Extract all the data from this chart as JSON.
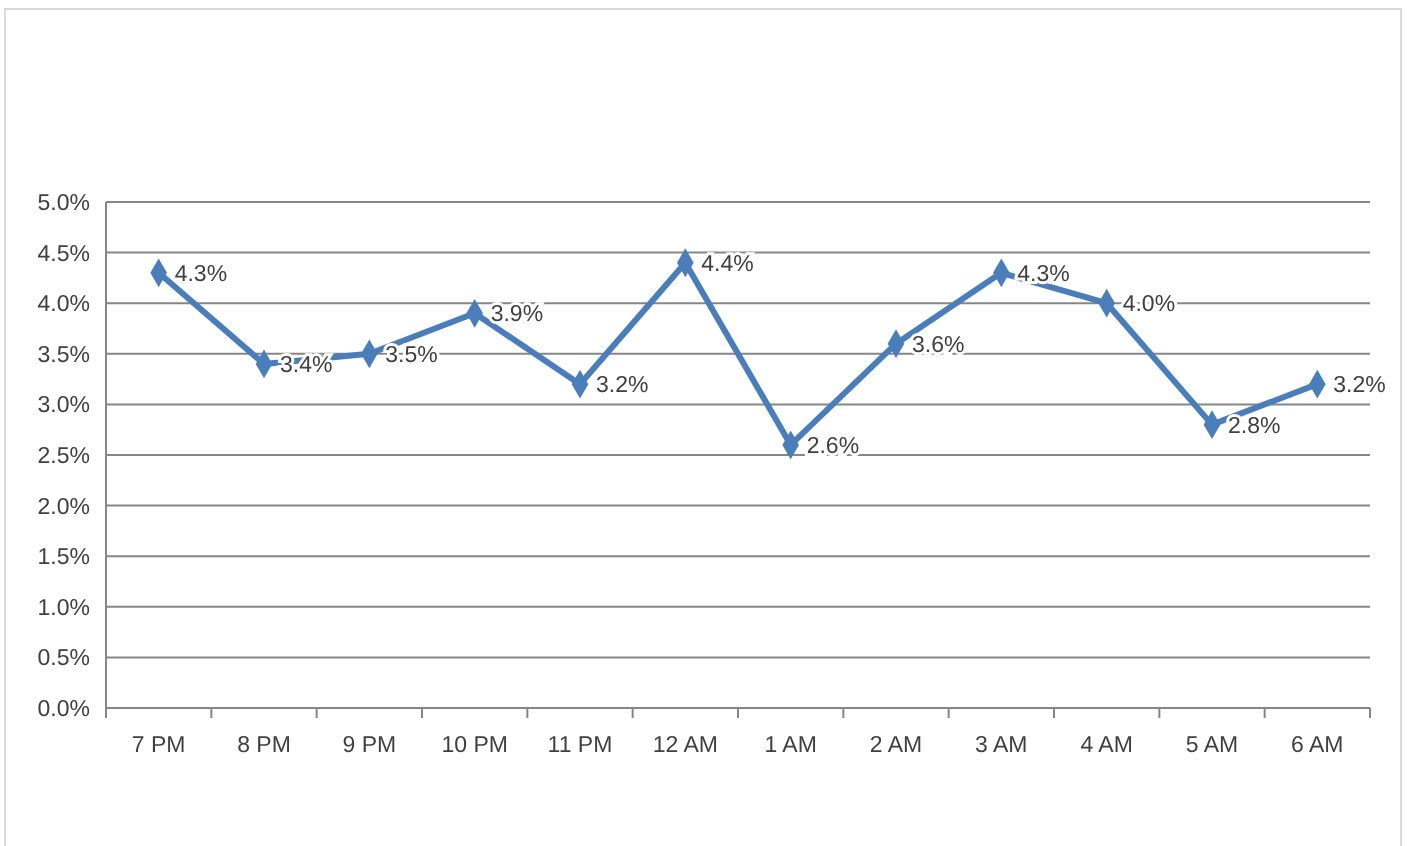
{
  "chart_data": {
    "type": "line",
    "categories": [
      "7 PM",
      "8 PM",
      "9 PM",
      "10 PM",
      "11 PM",
      "12 AM",
      "1 AM",
      "2 AM",
      "3 AM",
      "4 AM",
      "5 AM",
      "6 AM"
    ],
    "series": [
      {
        "color": "#4a7ebb",
        "values": [
          4.3,
          3.4,
          3.5,
          3.9,
          3.2,
          4.4,
          2.6,
          3.6,
          4.3,
          4.0,
          2.8,
          3.2
        ],
        "value_labels": [
          "4.3%",
          "3.4%",
          "3.5%",
          "3.9%",
          "3.2%",
          "4.4%",
          "2.6%",
          "3.6%",
          "4.3%",
          "4.0%",
          "2.8%",
          "3.2%"
        ]
      }
    ],
    "ylim": [
      0,
      5
    ],
    "yticks": [
      {
        "value": 0,
        "label": "0.0%"
      },
      {
        "value": 0.5,
        "label": "0.5%"
      },
      {
        "value": 1,
        "label": "1.0%"
      },
      {
        "value": 1.5,
        "label": "1.5%"
      },
      {
        "value": 2,
        "label": "2.0%"
      },
      {
        "value": 2.5,
        "label": "2.5%"
      },
      {
        "value": 3,
        "label": "3.0%"
      },
      {
        "value": 3.5,
        "label": "3.5%"
      },
      {
        "value": 4,
        "label": "4.0%"
      },
      {
        "value": 4.5,
        "label": "4.5%"
      },
      {
        "value": 5,
        "label": "5.0%"
      }
    ],
    "grid": "y",
    "marker": "diamond",
    "line_style": "solid"
  }
}
